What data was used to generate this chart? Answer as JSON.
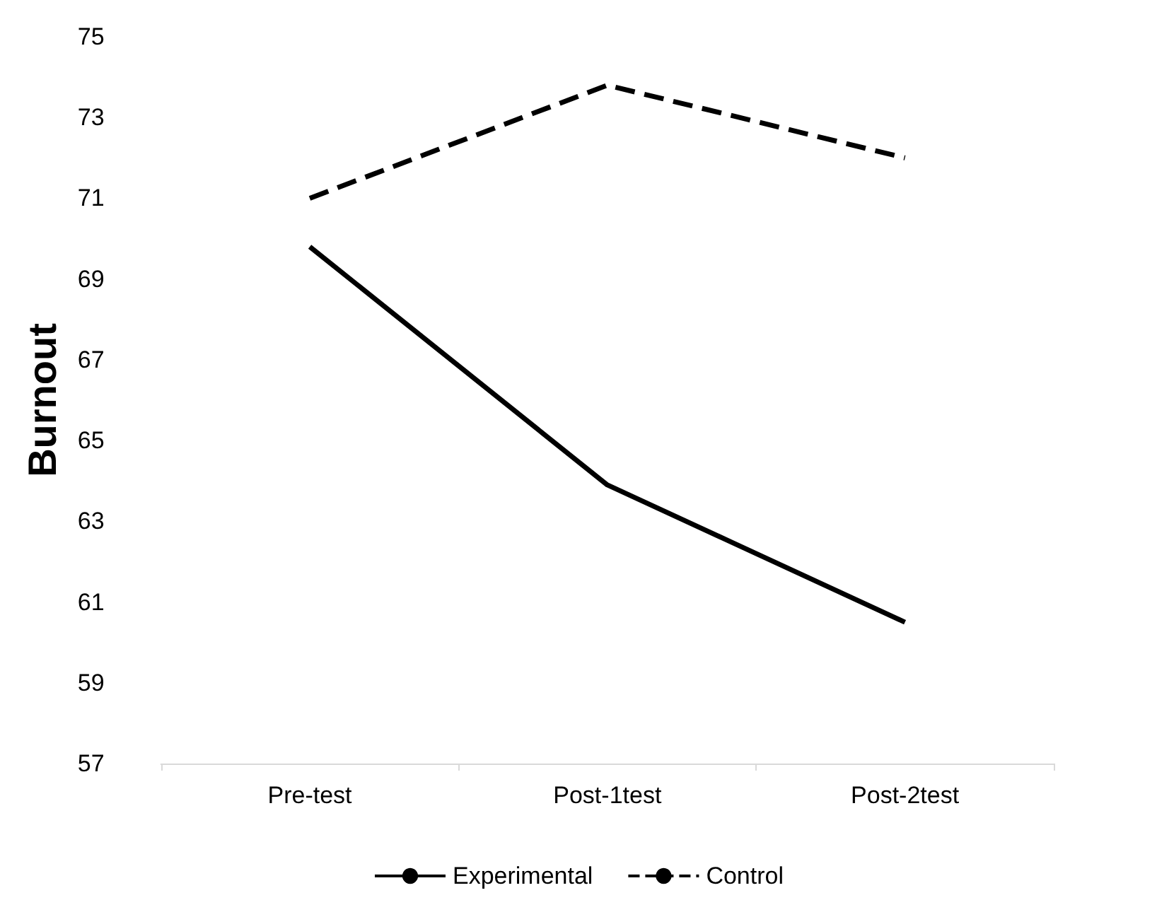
{
  "chart_data": {
    "type": "line",
    "ylabel": "Burnout",
    "categories": [
      "Pre-test",
      "Post-1test",
      "Post-2test"
    ],
    "series": [
      {
        "name": "Experimental",
        "color": "#000000",
        "values": [
          69.8,
          63.9,
          60.5
        ],
        "line_style": "solid"
      },
      {
        "name": "Control",
        "color": "#000000",
        "values": [
          71.0,
          73.8,
          72.0
        ],
        "line_style": "dashed"
      }
    ],
    "ylim": [
      57,
      75
    ],
    "yticks": [
      57,
      59,
      61,
      63,
      65,
      67,
      69,
      71,
      73,
      75
    ],
    "grid": false,
    "legend": "bottom",
    "marker": "none"
  }
}
